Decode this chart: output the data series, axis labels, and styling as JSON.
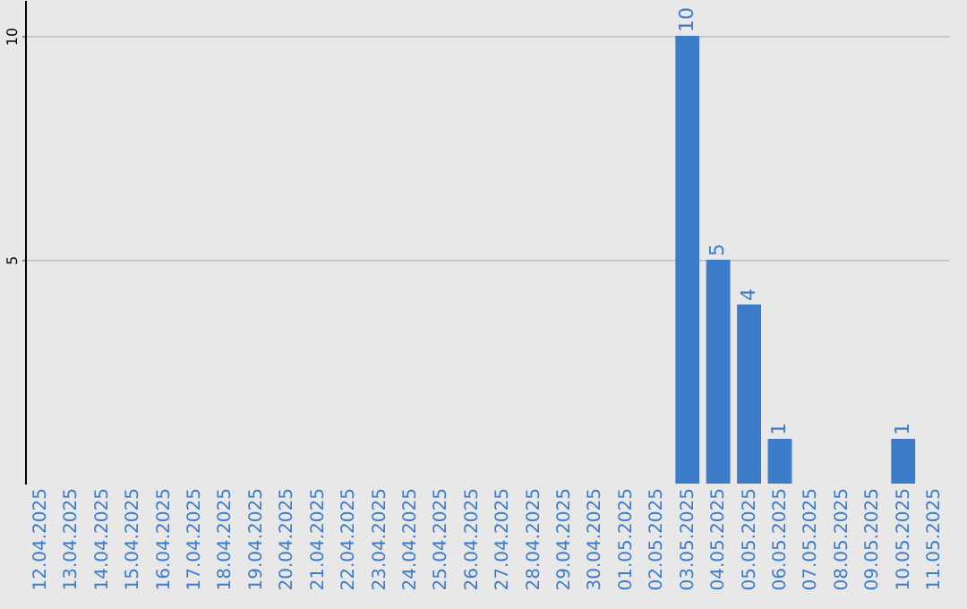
{
  "chart_data": {
    "type": "bar",
    "categories": [
      "12.04.2025",
      "13.04.2025",
      "14.04.2025",
      "15.04.2025",
      "16.04.2025",
      "17.04.2025",
      "18.04.2025",
      "19.04.2025",
      "20.04.2025",
      "21.04.2025",
      "22.04.2025",
      "23.04.2025",
      "24.04.2025",
      "25.04.2025",
      "26.04.2025",
      "27.04.2025",
      "28.04.2025",
      "29.04.2025",
      "30.04.2025",
      "01.05.2025",
      "02.05.2025",
      "03.05.2025",
      "04.05.2025",
      "05.05.2025",
      "06.05.2025",
      "07.05.2025",
      "08.05.2025",
      "09.05.2025",
      "10.05.2025",
      "11.05.2025"
    ],
    "values": [
      0,
      0,
      0,
      0,
      0,
      0,
      0,
      0,
      0,
      0,
      0,
      0,
      0,
      0,
      0,
      0,
      0,
      0,
      0,
      0,
      0,
      10,
      5,
      4,
      1,
      0,
      0,
      0,
      1,
      0
    ],
    "value_labels": [
      null,
      null,
      null,
      null,
      null,
      null,
      null,
      null,
      null,
      null,
      null,
      null,
      null,
      null,
      null,
      null,
      null,
      null,
      null,
      null,
      null,
      "10",
      "5",
      "4",
      "1",
      null,
      null,
      null,
      "1",
      null
    ],
    "color": "#3d7cc9",
    "ylim": [
      0,
      10.8
    ],
    "yticks": [
      5,
      10
    ],
    "grid": "y"
  }
}
